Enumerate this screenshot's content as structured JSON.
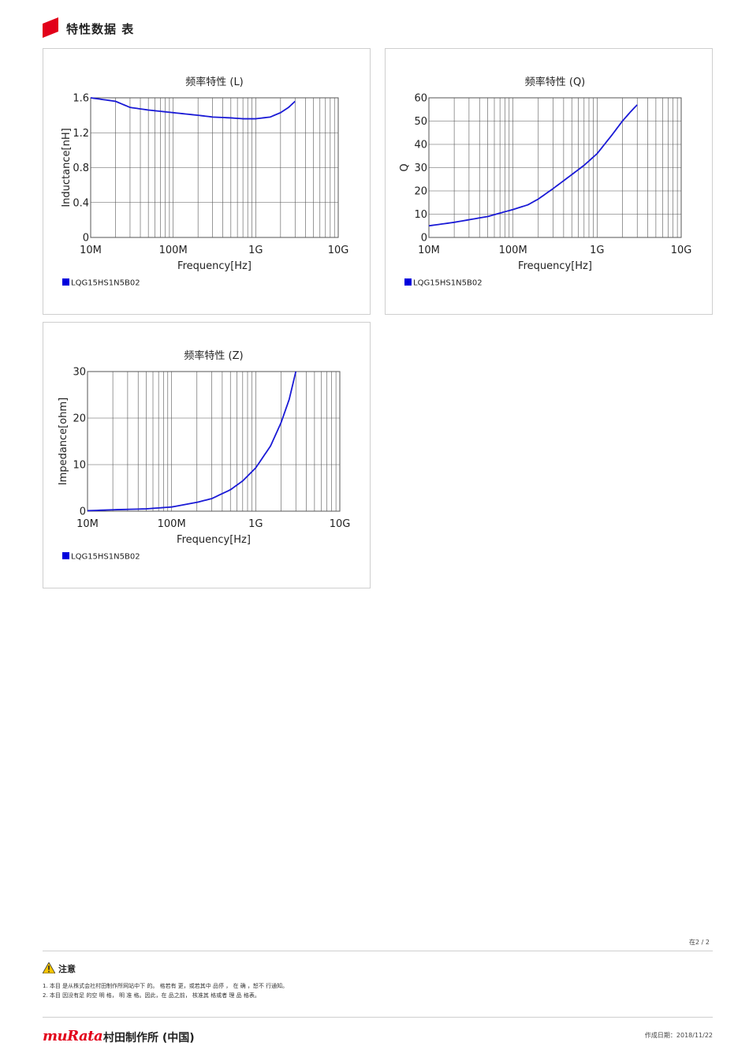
{
  "header": {
    "title": "特性数据 表"
  },
  "charts": [
    {
      "title": "频率特性 (L)",
      "ylabel": "Inductance[nH]",
      "xlabel": "Frequency[Hz]",
      "legend": "LQG15HS1N5B02",
      "xticks": [
        "10M",
        "100M",
        "1G",
        "10G"
      ],
      "yticks": [
        "0",
        "0.4",
        "0.8",
        "1.2",
        "1.6"
      ]
    },
    {
      "title": "频率特性 (Q)",
      "ylabel": "Q",
      "xlabel": "Frequency[Hz]",
      "legend": "LQG15HS1N5B02",
      "xticks": [
        "10M",
        "100M",
        "1G",
        "10G"
      ],
      "yticks": [
        "0",
        "10",
        "20",
        "30",
        "40",
        "50",
        "60"
      ]
    },
    {
      "title": "频率特性 (Z)",
      "ylabel": "Impedance[ohm]",
      "xlabel": "Frequency[Hz]",
      "legend": "LQG15HS1N5B02",
      "xticks": [
        "10M",
        "100M",
        "1G",
        "10G"
      ],
      "yticks": [
        "0",
        "10",
        "20",
        "30"
      ]
    }
  ],
  "chart_data": [
    {
      "type": "line",
      "xscale": "log",
      "xlim": [
        10000000,
        10000000000
      ],
      "ylim": [
        0,
        1.6
      ],
      "grid": true,
      "legend_position": "bottom-left",
      "color": "#1a1ad6",
      "series": [
        {
          "name": "LQG15HS1N5B02",
          "x": [
            10000000,
            20000000,
            30000000,
            50000000,
            100000000,
            200000000,
            300000000,
            500000000,
            700000000,
            1000000000,
            1500000000,
            2000000000,
            2500000000,
            3000000000
          ],
          "y": [
            1.6,
            1.56,
            1.49,
            1.46,
            1.43,
            1.4,
            1.38,
            1.37,
            1.36,
            1.36,
            1.38,
            1.43,
            1.49,
            1.56
          ]
        }
      ]
    },
    {
      "type": "line",
      "xscale": "log",
      "xlim": [
        10000000,
        10000000000
      ],
      "ylim": [
        0,
        60
      ],
      "grid": true,
      "legend_position": "bottom-left",
      "color": "#1a1ad6",
      "series": [
        {
          "name": "LQG15HS1N5B02",
          "x": [
            10000000,
            20000000,
            50000000,
            100000000,
            150000000,
            200000000,
            300000000,
            500000000,
            700000000,
            1000000000,
            1500000000,
            2000000000,
            2500000000,
            3000000000
          ],
          "y": [
            5,
            6.5,
            9,
            12,
            14,
            16.5,
            21,
            27,
            31,
            36,
            44,
            50,
            54,
            57
          ]
        }
      ]
    },
    {
      "type": "line",
      "xscale": "log",
      "xlim": [
        10000000,
        10000000000
      ],
      "ylim": [
        0,
        30
      ],
      "grid": true,
      "legend_position": "bottom-left",
      "color": "#1a1ad6",
      "series": [
        {
          "name": "LQG15HS1N5B02",
          "x": [
            10000000,
            20000000,
            50000000,
            100000000,
            200000000,
            300000000,
            500000000,
            700000000,
            1000000000,
            1500000000,
            2000000000,
            2500000000,
            3000000000
          ],
          "y": [
            0.1,
            0.3,
            0.5,
            0.9,
            1.9,
            2.7,
            4.6,
            6.5,
            9.3,
            14,
            19,
            24,
            30
          ]
        }
      ]
    }
  ],
  "footer": {
    "page": "在2 / 2",
    "caution": "注意",
    "note1": "1.   本目 是从株式会社村田制作所网站中下 的。 格若有 更，或若其中 品停 ， 在   确 ，恕不 行通知。",
    "note2": "2.   本目 因没有足 的空  明    格，   明 准 格。因此，在    品之前，  核准其 格或者 理 品 格表。",
    "logo": "muRata",
    "company": "村田制作所 (中国)",
    "created": "作成日期：2018/11/22"
  }
}
